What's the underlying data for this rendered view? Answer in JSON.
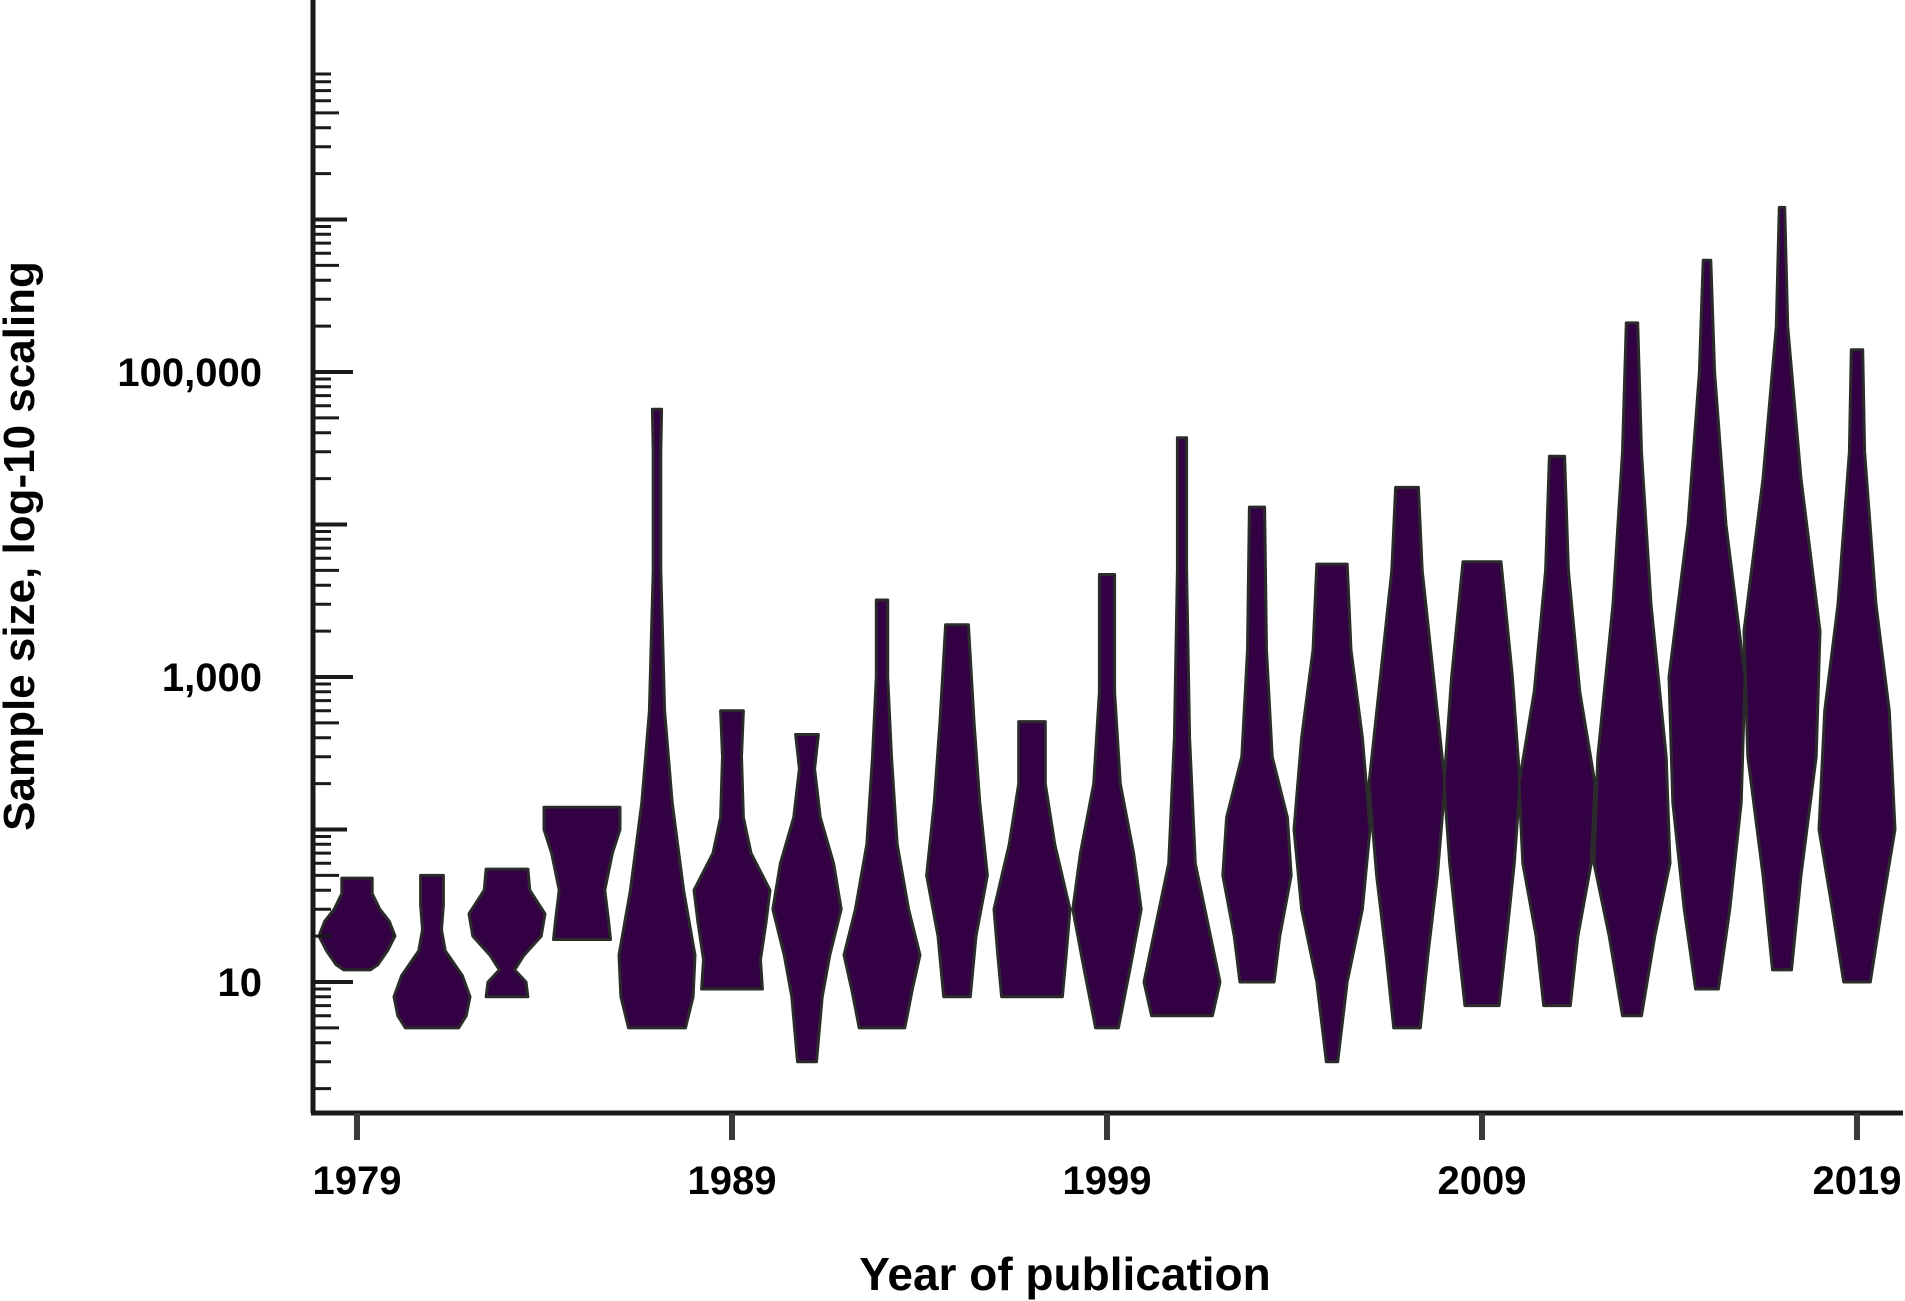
{
  "chart_data": {
    "type": "violin",
    "title": "",
    "xlabel": "Year of publication",
    "ylabel": "Sample size, log-10 scaling",
    "y_scale": "log10",
    "ylim": [
      2,
      1500000
    ],
    "xlim": [
      1978,
      2020.5
    ],
    "x_ticks": [
      1979,
      1989,
      1999,
      2009,
      2019
    ],
    "x_tick_labels": [
      "1979",
      "1989",
      "1999",
      "2009",
      "2019"
    ],
    "y_ticks": [
      10,
      1000,
      100000
    ],
    "y_tick_labels": [
      "10",
      "1,000",
      "100,000"
    ],
    "fill_color": "#330043",
    "stroke_color": "#2b2b2b",
    "grid": false,
    "legend": "none",
    "violins": [
      {
        "x": 1979,
        "min": 12,
        "max": 48,
        "profile": [
          [
            12,
            0.35
          ],
          [
            13,
            0.55
          ],
          [
            16,
            0.8
          ],
          [
            20,
            1.0
          ],
          [
            25,
            0.85
          ],
          [
            30,
            0.6
          ],
          [
            38,
            0.4
          ],
          [
            48,
            0.4
          ]
        ]
      },
      {
        "x": 1981,
        "min": 5,
        "max": 50,
        "profile": [
          [
            5,
            0.7
          ],
          [
            6,
            0.9
          ],
          [
            8,
            1.0
          ],
          [
            11,
            0.8
          ],
          [
            16,
            0.35
          ],
          [
            22,
            0.25
          ],
          [
            32,
            0.3
          ],
          [
            50,
            0.3
          ]
        ]
      },
      {
        "x": 1983,
        "min": 8,
        "max": 55,
        "profile": [
          [
            8,
            0.55
          ],
          [
            10,
            0.5
          ],
          [
            12,
            0.2
          ],
          [
            15,
            0.45
          ],
          [
            20,
            0.9
          ],
          [
            28,
            1.0
          ],
          [
            40,
            0.6
          ],
          [
            55,
            0.55
          ]
        ]
      },
      {
        "x": 1985,
        "min": 19,
        "max": 140,
        "profile": [
          [
            19,
            0.75
          ],
          [
            25,
            0.7
          ],
          [
            40,
            0.6
          ],
          [
            70,
            0.8
          ],
          [
            100,
            1.0
          ],
          [
            140,
            1.0
          ]
        ]
      },
      {
        "x": 1987,
        "min": 5,
        "max": 57000,
        "profile": [
          [
            5,
            0.75
          ],
          [
            8,
            0.95
          ],
          [
            15,
            1.0
          ],
          [
            40,
            0.7
          ],
          [
            150,
            0.4
          ],
          [
            600,
            0.2
          ],
          [
            5000,
            0.1
          ],
          [
            30000,
            0.1
          ],
          [
            57000,
            0.12
          ]
        ]
      },
      {
        "x": 1989,
        "min": 9,
        "max": 600,
        "profile": [
          [
            9,
            0.8
          ],
          [
            14,
            0.75
          ],
          [
            25,
            0.9
          ],
          [
            40,
            1.0
          ],
          [
            70,
            0.5
          ],
          [
            120,
            0.3
          ],
          [
            300,
            0.25
          ],
          [
            600,
            0.3
          ]
        ]
      },
      {
        "x": 1991,
        "min": 3,
        "max": 420,
        "profile": [
          [
            3,
            0.25
          ],
          [
            8,
            0.4
          ],
          [
            15,
            0.6
          ],
          [
            30,
            0.9
          ],
          [
            60,
            0.7
          ],
          [
            120,
            0.35
          ],
          [
            250,
            0.2
          ],
          [
            420,
            0.3
          ]
        ]
      },
      {
        "x": 1993,
        "min": 5,
        "max": 3200,
        "profile": [
          [
            5,
            0.6
          ],
          [
            9,
            0.8
          ],
          [
            15,
            1.0
          ],
          [
            30,
            0.7
          ],
          [
            80,
            0.4
          ],
          [
            300,
            0.25
          ],
          [
            1000,
            0.15
          ],
          [
            3200,
            0.15
          ]
        ]
      },
      {
        "x": 1995,
        "min": 8,
        "max": 2200,
        "profile": [
          [
            8,
            0.35
          ],
          [
            20,
            0.5
          ],
          [
            50,
            0.8
          ],
          [
            150,
            0.6
          ],
          [
            500,
            0.45
          ],
          [
            2200,
            0.3
          ]
        ]
      },
      {
        "x": 1997,
        "min": 8,
        "max": 510,
        "profile": [
          [
            8,
            0.8
          ],
          [
            15,
            0.9
          ],
          [
            30,
            1.0
          ],
          [
            80,
            0.6
          ],
          [
            200,
            0.35
          ],
          [
            510,
            0.35
          ]
        ]
      },
      {
        "x": 1999,
        "min": 5,
        "max": 4700,
        "profile": [
          [
            5,
            0.3
          ],
          [
            12,
            0.6
          ],
          [
            30,
            0.9
          ],
          [
            70,
            0.7
          ],
          [
            200,
            0.35
          ],
          [
            800,
            0.2
          ],
          [
            2000,
            0.2
          ],
          [
            4700,
            0.2
          ]
        ]
      },
      {
        "x": 2001,
        "min": 6,
        "max": 37000,
        "profile": [
          [
            6,
            0.8
          ],
          [
            10,
            1.0
          ],
          [
            20,
            0.75
          ],
          [
            60,
            0.35
          ],
          [
            400,
            0.2
          ],
          [
            5000,
            0.12
          ],
          [
            37000,
            0.12
          ]
        ]
      },
      {
        "x": 2003,
        "min": 10,
        "max": 13000,
        "profile": [
          [
            10,
            0.45
          ],
          [
            20,
            0.6
          ],
          [
            50,
            0.9
          ],
          [
            120,
            0.8
          ],
          [
            300,
            0.4
          ],
          [
            1500,
            0.25
          ],
          [
            13000,
            0.2
          ]
        ]
      },
      {
        "x": 2005,
        "min": 3,
        "max": 5500,
        "profile": [
          [
            3,
            0.15
          ],
          [
            10,
            0.4
          ],
          [
            30,
            0.8
          ],
          [
            100,
            1.0
          ],
          [
            400,
            0.8
          ],
          [
            1500,
            0.5
          ],
          [
            5500,
            0.4
          ]
        ]
      },
      {
        "x": 2007,
        "min": 5,
        "max": 17500,
        "profile": [
          [
            5,
            0.35
          ],
          [
            15,
            0.55
          ],
          [
            50,
            0.8
          ],
          [
            200,
            1.0
          ],
          [
            1000,
            0.7
          ],
          [
            5000,
            0.4
          ],
          [
            17500,
            0.3
          ]
        ]
      },
      {
        "x": 2009,
        "min": 7,
        "max": 5700,
        "profile": [
          [
            7,
            0.45
          ],
          [
            20,
            0.65
          ],
          [
            60,
            0.85
          ],
          [
            200,
            1.0
          ],
          [
            1000,
            0.8
          ],
          [
            5700,
            0.5
          ]
        ]
      },
      {
        "x": 2011,
        "min": 7,
        "max": 28000,
        "profile": [
          [
            7,
            0.35
          ],
          [
            20,
            0.55
          ],
          [
            60,
            0.9
          ],
          [
            200,
            1.0
          ],
          [
            800,
            0.6
          ],
          [
            5000,
            0.3
          ],
          [
            28000,
            0.2
          ]
        ]
      },
      {
        "x": 2013,
        "min": 6,
        "max": 210000,
        "profile": [
          [
            6,
            0.25
          ],
          [
            20,
            0.6
          ],
          [
            60,
            1.0
          ],
          [
            300,
            0.9
          ],
          [
            3000,
            0.5
          ],
          [
            30000,
            0.25
          ],
          [
            210000,
            0.15
          ]
        ]
      },
      {
        "x": 2015,
        "min": 9,
        "max": 540000,
        "profile": [
          [
            9,
            0.3
          ],
          [
            30,
            0.6
          ],
          [
            150,
            0.9
          ],
          [
            1000,
            1.0
          ],
          [
            10000,
            0.5
          ],
          [
            100000,
            0.2
          ],
          [
            540000,
            0.1
          ]
        ]
      },
      {
        "x": 2017,
        "min": 12,
        "max": 1200000,
        "profile": [
          [
            12,
            0.25
          ],
          [
            50,
            0.5
          ],
          [
            300,
            0.9
          ],
          [
            2000,
            1.0
          ],
          [
            20000,
            0.5
          ],
          [
            200000,
            0.15
          ],
          [
            1200000,
            0.07
          ]
        ]
      },
      {
        "x": 2019,
        "min": 10,
        "max": 140000,
        "profile": [
          [
            10,
            0.35
          ],
          [
            30,
            0.65
          ],
          [
            100,
            1.0
          ],
          [
            600,
            0.85
          ],
          [
            3000,
            0.5
          ],
          [
            30000,
            0.2
          ],
          [
            140000,
            0.15
          ]
        ]
      }
    ]
  }
}
